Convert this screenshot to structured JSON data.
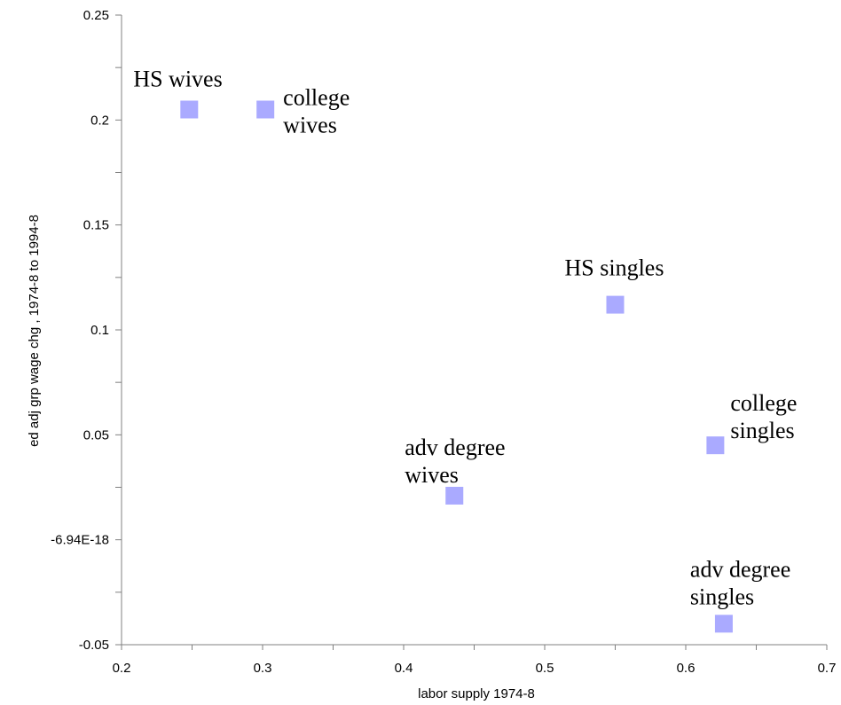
{
  "chart_data": {
    "type": "scatter",
    "title": "",
    "xlabel": "labor supply 1974-8",
    "ylabel": "ed adj grp wage chg , 1974-8 to 1994-8",
    "xlim": [
      0.2,
      0.7
    ],
    "ylim": [
      -0.05,
      0.25
    ],
    "x_ticks": [
      "0.2",
      "0.3",
      "0.4",
      "0.5",
      "0.6",
      "0.7"
    ],
    "y_ticks": [
      "0.25",
      "0.2",
      "0.15",
      "0.1",
      "0.05",
      "-6.94E-18",
      "-0.05"
    ],
    "grid": false,
    "marker": "square",
    "marker_color": "#aaaaff",
    "points": [
      {
        "x": 0.248,
        "y": 0.205,
        "label": [
          "HS wives"
        ]
      },
      {
        "x": 0.302,
        "y": 0.205,
        "label": [
          "college",
          "wives"
        ]
      },
      {
        "x": 0.55,
        "y": 0.112,
        "label": [
          "HS singles"
        ]
      },
      {
        "x": 0.621,
        "y": 0.045,
        "label": [
          "college",
          "singles"
        ]
      },
      {
        "x": 0.436,
        "y": 0.021,
        "label": [
          "adv degree",
          "wives"
        ]
      },
      {
        "x": 0.627,
        "y": -0.04,
        "label": [
          "adv degree",
          "singles"
        ]
      }
    ]
  }
}
